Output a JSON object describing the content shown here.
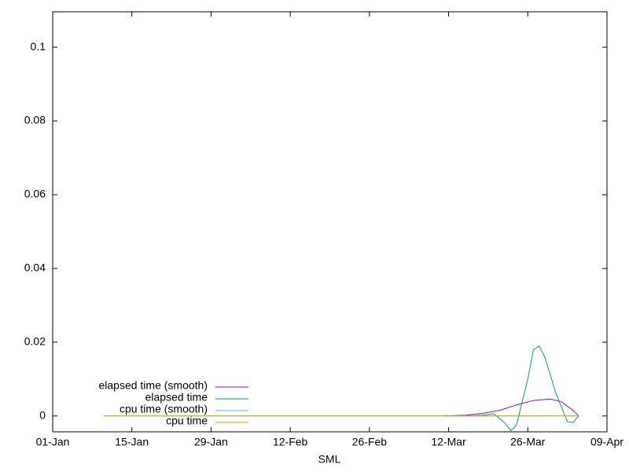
{
  "chart_data": {
    "type": "line",
    "xlabel": "SML",
    "xlim": [
      "01-Jan",
      "09-Apr"
    ],
    "xticks": [
      "01-Jan",
      "15-Jan",
      "29-Jan",
      "12-Feb",
      "26-Feb",
      "12-Mar",
      "26-Mar",
      "09-Apr"
    ],
    "ylim": [
      -0.0043,
      0.1096
    ],
    "yticks": [
      0,
      0.02,
      0.04,
      0.06,
      0.08,
      0.1
    ],
    "legend": "bottom-left",
    "series": [
      {
        "name": "elapsed time (smooth)",
        "color": "#9400d3",
        "x": [
          "11-Mar",
          "15-Mar",
          "18-Mar",
          "21-Mar",
          "24-Mar",
          "27-Mar",
          "30-Mar",
          "01-Apr",
          "03-Apr",
          "04-Apr"
        ],
        "values": [
          0,
          0.0002,
          0.0007,
          0.0015,
          0.003,
          0.0042,
          0.0046,
          0.0038,
          0.0015,
          0
        ]
      },
      {
        "name": "elapsed time",
        "color": "#009e73",
        "x": [
          "11-Mar",
          "15-Mar",
          "18-Mar",
          "20-Mar",
          "22-Mar",
          "23-Mar",
          "24-Mar",
          "26-Mar",
          "27-Mar",
          "28-Mar",
          "29-Mar",
          "31-Mar",
          "02-Apr",
          "03-Apr",
          "04-Apr"
        ],
        "values": [
          0,
          0,
          0.0002,
          0.0006,
          -0.002,
          -0.004,
          -0.0025,
          0.01,
          0.018,
          0.019,
          0.016,
          0.006,
          -0.0015,
          -0.0018,
          0
        ]
      },
      {
        "name": "cpu time (smooth)",
        "color": "#56b4e9",
        "x": [
          "10-Jan",
          "04-Apr"
        ],
        "values": [
          0,
          0
        ]
      },
      {
        "name": "cpu time",
        "color": "#e69f00",
        "x": [
          "10-Jan",
          "04-Apr"
        ],
        "values": [
          0,
          0
        ]
      }
    ]
  }
}
